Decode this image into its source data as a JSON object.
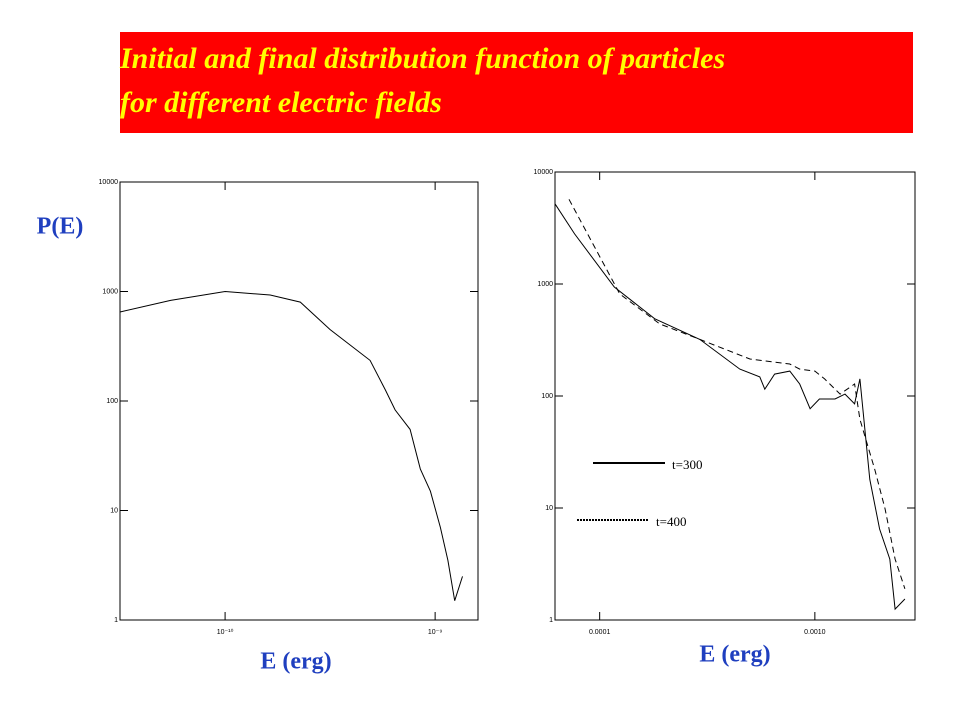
{
  "slide": {
    "title_lines": [
      "Initial and final distribution function of particles",
      "for different electric fields"
    ]
  },
  "chart_data": [
    {
      "type": "line",
      "log_x": true,
      "log_y": true,
      "ylabel": "P(E)",
      "xlabel": "E (erg)",
      "color": "#000000",
      "x": [
        3.16e-11,
        5.5e-11,
        1e-10,
        1.64e-10,
        2.28e-10,
        3.16e-10,
        4.9e-10,
        5.8e-10,
        6.45e-10,
        7.6e-10,
        8.5e-10,
        9.5e-10,
        1.06e-09,
        1.15e-09,
        1.24e-09,
        1.35e-09
      ],
      "values": [
        650,
        830,
        1000,
        930,
        800,
        450,
        235,
        126,
        83,
        55,
        24,
        15,
        7,
        3.5,
        1.5,
        2.5
      ],
      "xlim": [
        3.16e-11,
        1.6e-09
      ],
      "ylim": [
        1,
        10000
      ],
      "xticks": [
        {
          "value": 1e-10,
          "label": "10⁻¹⁰"
        },
        {
          "value": 1e-09,
          "label": "10⁻⁹"
        }
      ],
      "yticks": [
        1,
        10,
        100,
        1000,
        10000
      ]
    },
    {
      "type": "line",
      "log_x": true,
      "log_y": true,
      "xlabel": "E (erg)",
      "legend": "lower-left",
      "xlim": [
        6.2e-05,
        0.00292
      ],
      "ylim": [
        1,
        10000
      ],
      "xticks": [
        0.0001,
        {
          "value": 0.001,
          "label": "0.0010"
        }
      ],
      "yticks": [
        1,
        10,
        100,
        1000,
        10000
      ],
      "series": [
        {
          "name": "t=300",
          "color": "#000000",
          "dash": "solid",
          "x": [
            6.2e-05,
            7.65e-05,
            0.000117,
            0.00018,
            0.000292,
            0.000448,
            0.000555,
            0.000585,
            0.00065,
            0.000765,
            0.00085,
            0.00095,
            0.00105,
            0.00124,
            0.00138,
            0.00153,
            0.00162,
            0.0018,
            0.002,
            0.00223,
            0.00236,
            0.00262
          ],
          "values": [
            5200,
            2800,
            940,
            490,
            320,
            174,
            148,
            115,
            157,
            167,
            128,
            77,
            94,
            94,
            104,
            85,
            142,
            18,
            6.5,
            3.5,
            1.25,
            1.54
          ]
        },
        {
          "name": "t=400",
          "color": "#000000",
          "dash": "dashed",
          "x": [
            7.2e-05,
            0.000124,
            0.00019,
            0.000292,
            0.000499,
            0.000765,
            0.00085,
            0.001,
            0.00111,
            0.00131,
            0.00153,
            0.00162,
            0.0019,
            0.00212,
            0.00236,
            0.00262
          ],
          "values": [
            5700,
            815,
            440,
            320,
            214,
            193,
            174,
            167,
            142,
            104,
            128,
            62,
            22,
            9.8,
            3.5,
            1.9
          ]
        }
      ]
    }
  ]
}
